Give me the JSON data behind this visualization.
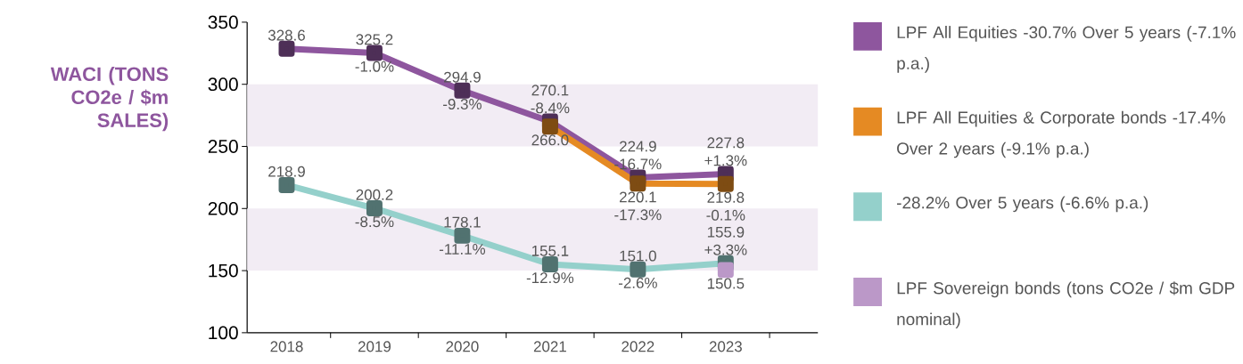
{
  "chart_data": {
    "type": "line",
    "ylabel": "WACI (TONS CO2e / $m SALES)",
    "categories": [
      "2018",
      "2019",
      "2020",
      "2021",
      "2022",
      "2023"
    ],
    "series": [
      {
        "name": "LPF All Equities -30.7% Over 5 years (-7.1% p.a.)",
        "color": "#8e569e",
        "values": [
          328.6,
          325.2,
          294.9,
          270.1,
          224.9,
          227.8
        ],
        "value_labels": [
          "328.6",
          "325.2",
          "294.9",
          "270.1",
          "224.9",
          "227.8"
        ]
      },
      {
        "name": "LPF All Equities & Corporate bonds -17.4% Over 2 years (-9.1% p.a.)",
        "color": "#e58a23",
        "values": [
          null,
          null,
          null,
          266.0,
          220.1,
          219.8
        ],
        "value_labels": [
          null,
          null,
          null,
          "266.0",
          "220.1",
          "219.8"
        ]
      },
      {
        "name": "-28.2% Over 5 years (-6.6% p.a.)",
        "color": "#94d0cb",
        "values": [
          218.9,
          200.2,
          178.1,
          155.1,
          151.0,
          155.9
        ],
        "value_labels": [
          "218.9",
          "200.2",
          "178.1",
          "155.1",
          "151.0",
          "155.9"
        ]
      },
      {
        "name": "LPF Sovereign bonds (tons CO2e / $m GDP nominal)",
        "color": "#bb98c8",
        "values": [
          null,
          null,
          null,
          null,
          null,
          150.5
        ],
        "value_labels": [
          null,
          null,
          null,
          null,
          null,
          "150.5"
        ]
      }
    ],
    "annotations": [
      {
        "text": "-1.0%",
        "x": "2019",
        "y": 325.2
      },
      {
        "text": "-9.3%",
        "x": "2020",
        "y": 294.9
      },
      {
        "text": "-8.4%",
        "x": "2021",
        "y": 270.1
      },
      {
        "text": "-16.7%",
        "x": "2022",
        "y": 224.9
      },
      {
        "text": "+1.3%",
        "x": "2023",
        "y": 227.8
      },
      {
        "text": "-17.3%",
        "x": "2022",
        "y": 220.1
      },
      {
        "text": "-0.1%",
        "x": "2023",
        "y": 219.8
      },
      {
        "text": "-8.5%",
        "x": "2019",
        "y": 200.2
      },
      {
        "text": "-11.1%",
        "x": "2020",
        "y": 178.1
      },
      {
        "text": "-12.9%",
        "x": "2021",
        "y": 155.1
      },
      {
        "text": "-2.6%",
        "x": "2022",
        "y": 151.0
      },
      {
        "text": "+3.3%",
        "x": "2023",
        "y": 155.9
      }
    ],
    "bands": [
      {
        "axis": "y",
        "from": 250,
        "to": 300,
        "color": "#f2ecf4"
      },
      {
        "axis": "y",
        "from": 150,
        "to": 200,
        "color": "#f2ecf4"
      }
    ],
    "ylim": [
      100,
      350
    ],
    "yticks": [
      100,
      150,
      200,
      250,
      300,
      350
    ],
    "legend": "right",
    "marker": "square",
    "line_style": "solid"
  }
}
